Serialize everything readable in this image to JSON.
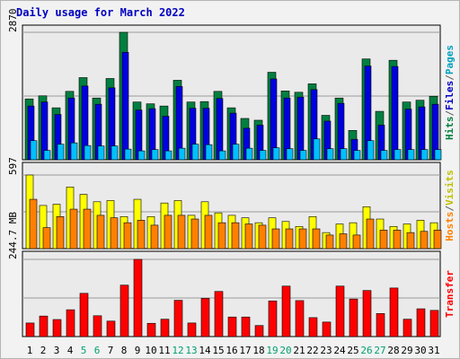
{
  "chart_data": [
    {
      "type": "bar",
      "panel": "hits-files-pages",
      "title": "Daily usage for March 2022",
      "categories": [
        "1",
        "2",
        "3",
        "4",
        "5",
        "6",
        "7",
        "8",
        "9",
        "10",
        "11",
        "12",
        "13",
        "14",
        "15",
        "16",
        "17",
        "18",
        "19",
        "20",
        "21",
        "22",
        "23",
        "24",
        "25",
        "26",
        "27",
        "28",
        "29",
        "30",
        "31"
      ],
      "weekend_days": [
        "5",
        "6",
        "12",
        "13",
        "19",
        "20",
        "26",
        "27"
      ],
      "ytick": "2870",
      "ylim": [
        0,
        2870
      ],
      "ylabel_parts": [
        {
          "text": "Hits",
          "color": "#008040"
        },
        {
          "text": "/",
          "color": "#606060"
        },
        {
          "text": "Files",
          "color": "#0000c0"
        },
        {
          "text": "/",
          "color": "#606060"
        },
        {
          "text": "Pages",
          "color": "#00a0c0"
        }
      ],
      "series": [
        {
          "name": "Hits",
          "color": "#008040",
          "values": [
            1370,
            1440,
            1170,
            1540,
            1850,
            1390,
            1830,
            2870,
            1300,
            1260,
            1210,
            1790,
            1300,
            1310,
            1540,
            1170,
            930,
            890,
            1970,
            1550,
            1520,
            1710,
            1000,
            1390,
            660,
            2270,
            1090,
            2240,
            1300,
            1340,
            1430
          ]
        },
        {
          "name": "Files",
          "color": "#0000e0",
          "values": [
            1210,
            1300,
            1020,
            1390,
            1660,
            1250,
            1620,
            2420,
            1120,
            1150,
            980,
            1650,
            1160,
            1160,
            1380,
            1050,
            710,
            780,
            1820,
            1390,
            1410,
            1580,
            870,
            1270,
            460,
            2110,
            780,
            2100,
            1140,
            1190,
            1250
          ]
        },
        {
          "name": "Pages",
          "color": "#00c0ff",
          "values": [
            430,
            210,
            350,
            380,
            320,
            310,
            310,
            240,
            200,
            230,
            200,
            260,
            350,
            340,
            200,
            350,
            260,
            210,
            270,
            250,
            210,
            470,
            250,
            250,
            210,
            430,
            210,
            230,
            230,
            230,
            230
          ]
        }
      ]
    },
    {
      "type": "bar",
      "panel": "hosts-visits",
      "categories": [
        "1",
        "2",
        "3",
        "4",
        "5",
        "6",
        "7",
        "8",
        "9",
        "10",
        "11",
        "12",
        "13",
        "14",
        "15",
        "16",
        "17",
        "18",
        "19",
        "20",
        "21",
        "22",
        "23",
        "24",
        "25",
        "26",
        "27",
        "28",
        "29",
        "30",
        "31"
      ],
      "ytick": "597",
      "ylim": [
        0,
        597
      ],
      "ylabel_parts": [
        {
          "text": "Hosts",
          "color": "#ff8000"
        },
        {
          "text": "/",
          "color": "#606060"
        },
        {
          "text": "Visits",
          "color": "#c0c000"
        }
      ],
      "series": [
        {
          "name": "Visits",
          "color": "#ffff00",
          "values": [
            597,
            350,
            360,
            500,
            440,
            380,
            390,
            260,
            400,
            260,
            370,
            390,
            270,
            380,
            290,
            270,
            250,
            210,
            250,
            220,
            180,
            260,
            130,
            200,
            210,
            340,
            240,
            180,
            200,
            230,
            210
          ]
        },
        {
          "name": "Hosts",
          "color": "#ff8000",
          "values": [
            400,
            170,
            260,
            320,
            320,
            270,
            250,
            210,
            230,
            190,
            270,
            270,
            240,
            270,
            210,
            210,
            200,
            190,
            160,
            160,
            160,
            160,
            110,
            120,
            110,
            240,
            150,
            150,
            130,
            140,
            150
          ]
        }
      ]
    },
    {
      "type": "bar",
      "panel": "transfer",
      "categories": [
        "1",
        "2",
        "3",
        "4",
        "5",
        "6",
        "7",
        "8",
        "9",
        "10",
        "11",
        "12",
        "13",
        "14",
        "15",
        "16",
        "17",
        "18",
        "19",
        "20",
        "21",
        "22",
        "23",
        "24",
        "25",
        "26",
        "27",
        "28",
        "29",
        "30",
        "31"
      ],
      "ytick": "244.7 MB",
      "ylim": [
        0,
        244.7
      ],
      "ylabel_parts": [
        {
          "text": "Transfer",
          "color": "#ff0000"
        }
      ],
      "series": [
        {
          "name": "Transfer",
          "color": "#ff0000",
          "values": [
            43,
            65,
            54,
            85,
            137,
            66,
            49,
            163,
            244.7,
            42,
            55,
            115,
            43,
            121,
            143,
            62,
            62,
            35,
            113,
            160,
            114,
            60,
            46,
            160,
            119,
            146,
            73,
            154,
            55,
            88,
            83
          ]
        }
      ]
    }
  ]
}
